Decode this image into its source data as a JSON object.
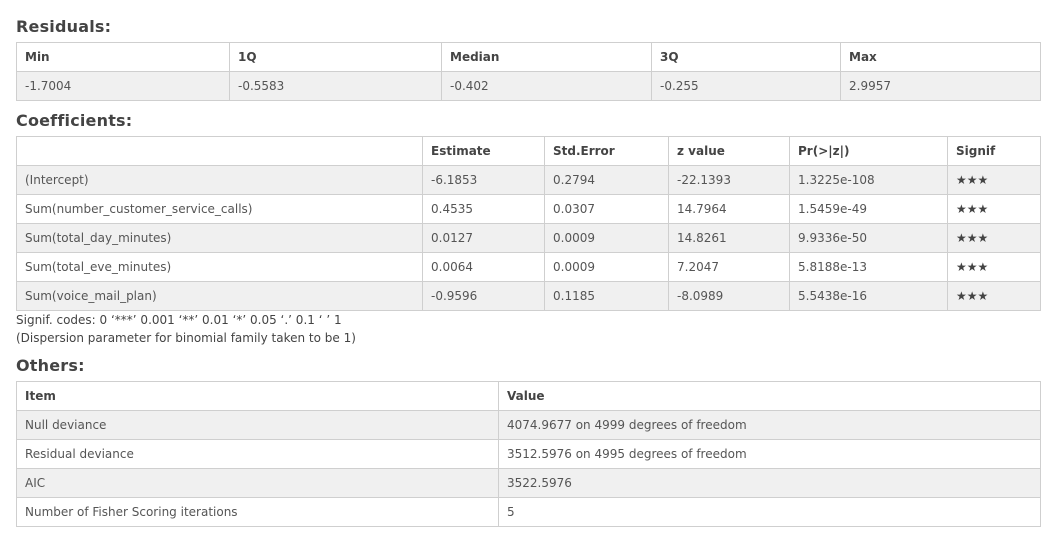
{
  "residuals": {
    "title": "Residuals:",
    "headers": [
      "Min",
      "1Q",
      "Median",
      "3Q",
      "Max"
    ],
    "values": [
      "-1.7004",
      "-0.5583",
      "-0.402",
      "-0.255",
      "2.9957"
    ]
  },
  "coefficients": {
    "title": "Coefficients:",
    "headers": [
      "",
      "Estimate",
      "Std.Error",
      "z value",
      "Pr(>|z|)",
      "Signif"
    ],
    "rows": [
      [
        "(Intercept)",
        "-6.1853",
        "0.2794",
        "-22.1393",
        "1.3225e-108",
        "★★★"
      ],
      [
        "Sum(number_customer_service_calls)",
        "0.4535",
        "0.0307",
        "14.7964",
        "1.5459e-49",
        "★★★"
      ],
      [
        "Sum(total_day_minutes)",
        "0.0127",
        "0.0009",
        "14.8261",
        "9.9336e-50",
        "★★★"
      ],
      [
        "Sum(total_eve_minutes)",
        "0.0064",
        "0.0009",
        "7.2047",
        "5.8188e-13",
        "★★★"
      ],
      [
        "Sum(voice_mail_plan)",
        "-0.9596",
        "0.1185",
        "-8.0989",
        "5.5438e-16",
        "★★★"
      ]
    ],
    "signif_codes": "Signif. codes: 0 ‘***’ 0.001 ‘**’ 0.01 ‘*’ 0.05 ‘.’ 0.1 ‘ ’ 1",
    "dispersion_note": "(Dispersion parameter for binomial family taken to be 1)"
  },
  "others": {
    "title": "Others:",
    "headers": [
      "Item",
      "Value"
    ],
    "rows": [
      [
        "Null deviance",
        "4074.9677 on 4999 degrees of freedom"
      ],
      [
        "Residual deviance",
        "3512.5976 on 4995 degrees of freedom"
      ],
      [
        "AIC",
        "3522.5976"
      ],
      [
        "Number of Fisher Scoring iterations",
        "5"
      ]
    ]
  }
}
